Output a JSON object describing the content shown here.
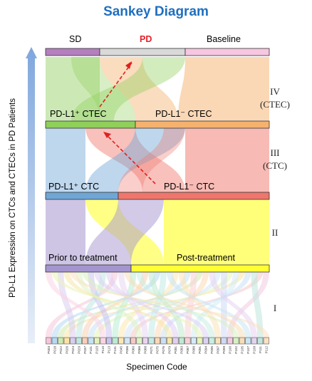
{
  "title": "Sankey Diagram",
  "y_axis_label": "PD-L1 Expression on CTCs and CTECs in PD Patients",
  "x_axis_label": "Specimen Code",
  "top_categories": [
    {
      "label": "SD",
      "color": "#b57fbf"
    },
    {
      "label": "PD",
      "color": "#d9d9d9",
      "text_color": "#e8202a"
    },
    {
      "label": "Baseline",
      "color": "#f7c6e0"
    }
  ],
  "levels": [
    {
      "numeral": "I",
      "sub": ""
    },
    {
      "numeral": "II",
      "sub": ""
    },
    {
      "numeral": "III",
      "sub": "(CTC)"
    },
    {
      "numeral": "IV",
      "sub": "(CTEC)"
    }
  ],
  "level4_bars": [
    {
      "label": "PD-L1⁺ CTEC",
      "color": "#8fcf5a"
    },
    {
      "label": "PD-L1⁻ CTEC",
      "color": "#f5b26e"
    }
  ],
  "level3_bars": [
    {
      "label": "PD-L1⁺ CTC",
      "color": "#6fa6d6"
    },
    {
      "label": "PD-L1⁻ CTC",
      "color": "#f0766b"
    }
  ],
  "level2_bars": [
    {
      "label": "Prior to treatment",
      "color": "#a595cf"
    },
    {
      "label": "Post-treatment",
      "color": "#ffff33"
    }
  ],
  "specimen_codes": [
    "P003",
    "P018",
    "P022",
    "P026",
    "P024",
    "P029",
    "P037",
    "P101",
    "P103",
    "P110",
    "P113",
    "P131",
    "P045",
    "P056",
    "P060",
    "P066",
    "P068",
    "P071",
    "P075",
    "P076",
    "P079",
    "P081",
    "P083",
    "P087",
    "P088",
    "P091",
    "P094",
    "P095",
    "P097",
    "P099",
    "P100",
    "P102",
    "P105",
    "P107",
    "P109",
    "P111",
    "P112"
  ],
  "specimen_colors": [
    "#f4c6d8",
    "#b5d9f2",
    "#cfe9b0",
    "#fbe3a4",
    "#d9cdef",
    "#bfe8e4",
    "#f7d0b5",
    "#c6e2f5",
    "#e4f4b8",
    "#fad4e4",
    "#c9c2ef",
    "#b8ecd6",
    "#fde7b2",
    "#d2e6f7",
    "#f6c9c9",
    "#dff3c3",
    "#e9d5f2",
    "#c1ebe6",
    "#fbd9b6",
    "#cbe0f6",
    "#f5e8a8",
    "#e1cef2",
    "#bfe9cf",
    "#f9cfd6",
    "#d4ecf8",
    "#eaf4b6",
    "#dcd1f3",
    "#c7efe0",
    "#fce2b8",
    "#cfdbf5",
    "#f3cbe0",
    "#d8f0c0",
    "#f7dcb8",
    "#c9e5f2",
    "#e5d3f0",
    "#bfe6dd",
    "#fbe0c2"
  ]
}
